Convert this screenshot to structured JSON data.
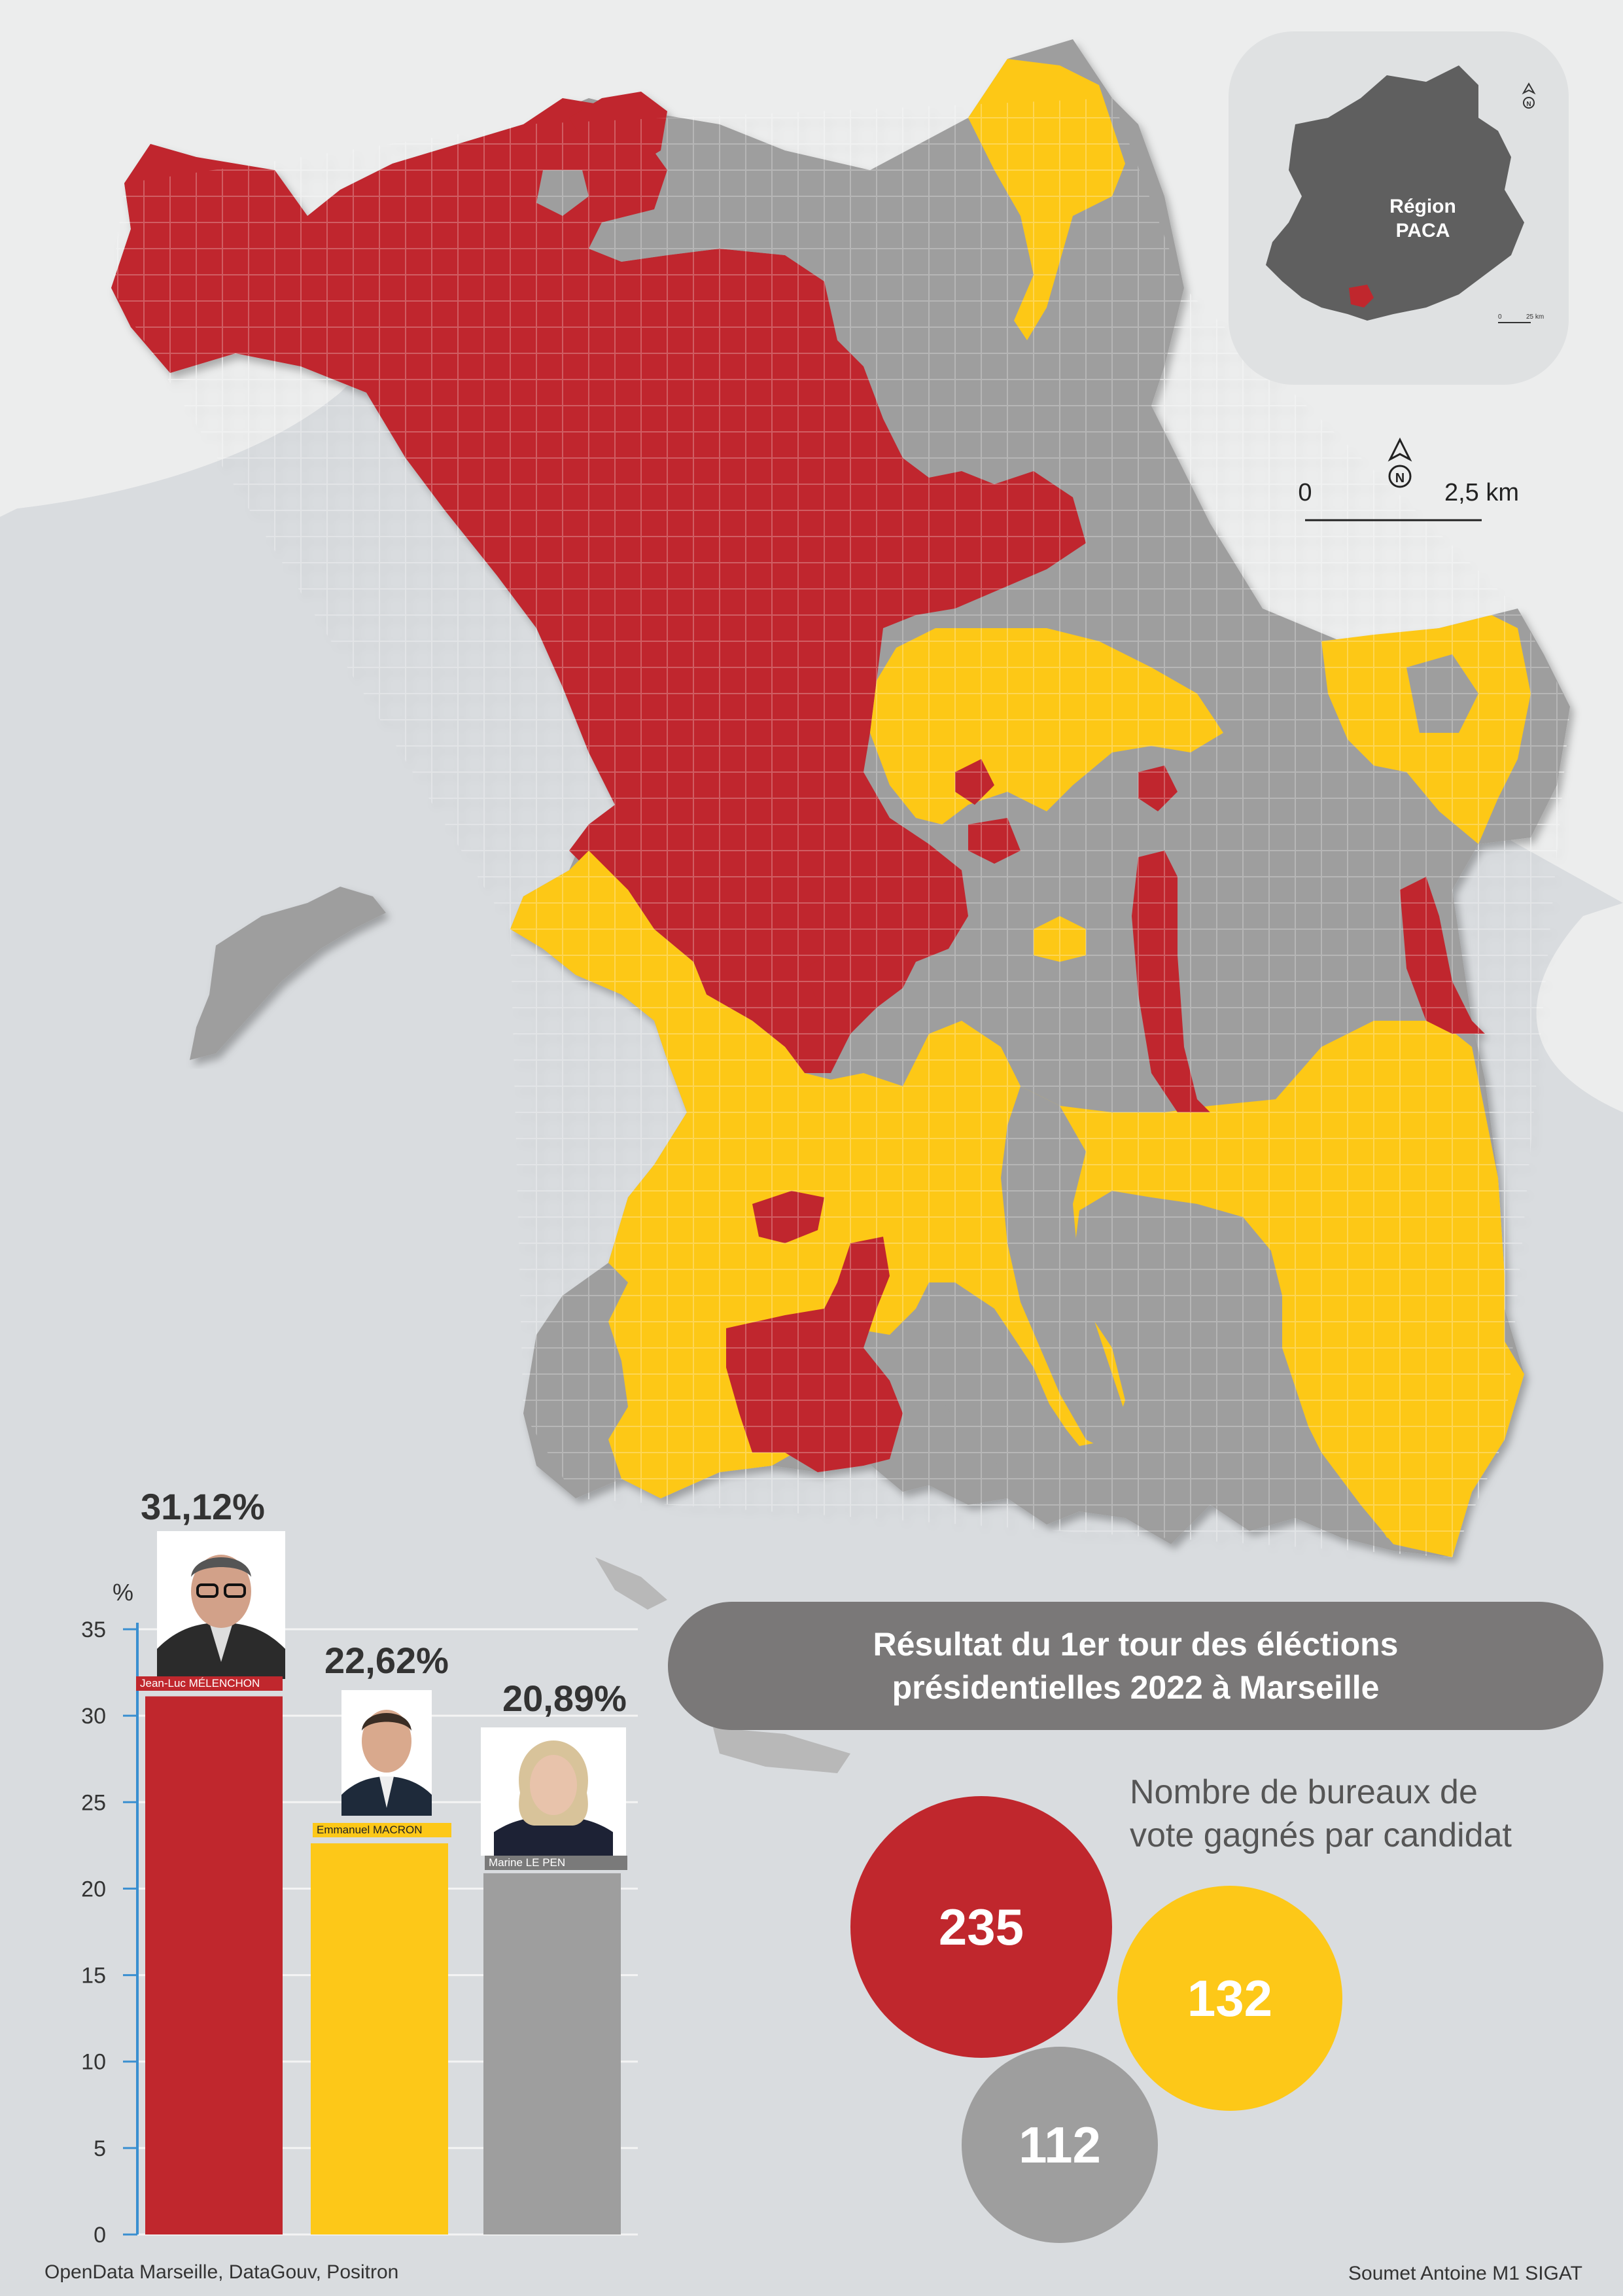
{
  "colors": {
    "melenchon": "#c0272d",
    "macron": "#fdc818",
    "lepen": "#9e9e9e",
    "sea": "#d9dcdf",
    "land": "#eceded"
  },
  "inset": {
    "label_line1": "Région",
    "label_line2": "PACA",
    "scale_zero": "0",
    "scale_end": "25 km",
    "north": "N"
  },
  "map_scale": {
    "zero": "0",
    "end": "2,5 km",
    "north": "N"
  },
  "chart_data": {
    "type": "bar",
    "ylabel": "%",
    "ylim": [
      0,
      35
    ],
    "yticks": [
      0,
      5,
      10,
      15,
      20,
      25,
      30,
      35
    ],
    "categories": [
      "Jean-Luc MÉLENCHON",
      "Emmanuel MACRON",
      "Marine LE PEN"
    ],
    "values": [
      31.12,
      22.62,
      20.89
    ],
    "value_labels": [
      "31,12%",
      "22,62%",
      "20,89%"
    ],
    "colors": [
      "#c0272d",
      "#fdc818",
      "#9e9e9e"
    ]
  },
  "title": {
    "line1": "Résultat du 1er tour des éléctions",
    "line2": "présidentielles 2022 à Marseille"
  },
  "bureaux": {
    "caption_line1": "Nombre de bureaux de",
    "caption_line2": "vote gagnés par candidat",
    "melenchon": "235",
    "macron": "132",
    "lepen": "112"
  },
  "footer": {
    "source": "OpenData Marseille, DataGouv, Positron",
    "author": "Soumet Antoine M1 SIGAT"
  }
}
